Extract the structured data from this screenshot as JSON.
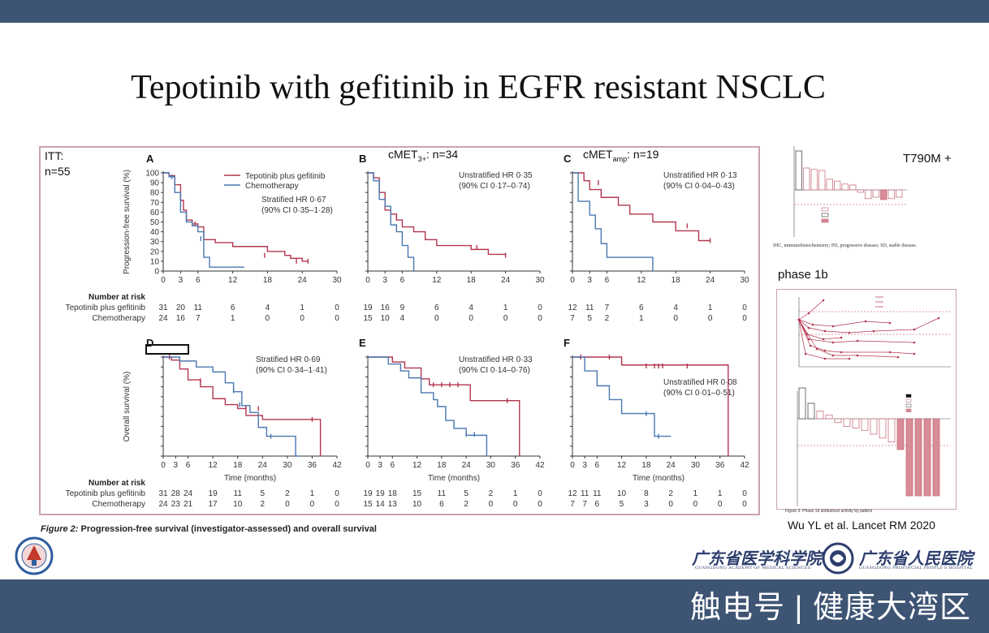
{
  "slide": {
    "title": "Tepotinib with gefitinib in EGFR resistant NSCLC",
    "itt_label": "ITT:",
    "itt_n": "n=55",
    "cmet3_label": "cMET",
    "cmet3_sub": "3+",
    "cmet3_n": ": n=34",
    "cmetamp_label": "cMET",
    "cmetamp_sub": "amp",
    "cmetamp_n": ": n=19",
    "t790m_label": "T790M +",
    "phase_label": "phase 1b",
    "citation": "Wu YL et al. Lancet RM 2020",
    "caption_prefix": "Figure 2:",
    "caption_text": " Progression-free survival (investigator-assessed) and overall survival",
    "watermark": "触电号 | 健康大湾区",
    "org1": "广东省医学科学院",
    "org1_en": "GUANGDONG ACADEMY OF MEDICAL SCIENCES",
    "org2": "广东省人民医院",
    "org2_en": "GUANGDONG PROVINCIAL PEOPLE'S HOSPITAL",
    "waterfall_footnote": "IHC, immunohistochemistry; PD, progressive disease; SD, stable disease.",
    "phase1b_caption": "Figure 3: Phase 1b antitumour activity by patient"
  },
  "colors": {
    "red": "#b3364f",
    "blue": "#4a78b0",
    "bar": "#3e5473"
  },
  "chart_data": [
    {
      "type": "line",
      "panel": "A",
      "ylabel": "Progression-free survival (%)",
      "xlabel": "",
      "xlim": [
        0,
        30
      ],
      "ylim": [
        0,
        100
      ],
      "xticks": [
        0,
        3,
        6,
        12,
        18,
        24,
        30
      ],
      "yticks": [
        0,
        10,
        20,
        30,
        40,
        50,
        60,
        70,
        80,
        90,
        100
      ],
      "legend": [
        "Tepotinib plus gefitinib",
        "Chemotherapy"
      ],
      "annotation": [
        "Stratified HR 0·67",
        "(90% CI 0·35–1·28)"
      ],
      "series": [
        {
          "name": "Tepotinib plus gefitinib",
          "color": "red",
          "x": [
            0,
            1,
            2,
            3,
            3.5,
            4,
            5,
            6,
            7,
            9,
            12,
            18,
            21,
            22,
            24,
            25
          ],
          "y": [
            100,
            97,
            88,
            72,
            62,
            52,
            48,
            45,
            32,
            29,
            25,
            20,
            16,
            13,
            10,
            10
          ],
          "censor": [
            [
              5.5,
              48
            ],
            [
              17.5,
              16
            ],
            [
              23,
              10
            ],
            [
              25,
              10
            ]
          ]
        },
        {
          "name": "Chemotherapy",
          "color": "blue",
          "x": [
            0,
            1,
            2,
            3,
            4,
            5,
            6,
            7,
            8,
            14
          ],
          "y": [
            100,
            96,
            80,
            60,
            50,
            46,
            40,
            14,
            4,
            4
          ],
          "censor": [
            [
              1.5,
              96
            ],
            [
              6.5,
              33
            ]
          ]
        }
      ],
      "risk_title": "Number at risk",
      "risk_rows": [
        {
          "label": "Tepotinib plus gefitinib",
          "values": [
            "31",
            "20",
            "11",
            "6",
            "4",
            "1",
            "0"
          ]
        },
        {
          "label": "Chemotherapy",
          "values": [
            "24",
            "16",
            "7",
            "1",
            "0",
            "0",
            "0"
          ]
        }
      ]
    },
    {
      "type": "line",
      "panel": "B",
      "xlim": [
        0,
        30
      ],
      "ylim": [
        0,
        100
      ],
      "xticks": [
        0,
        3,
        6,
        12,
        18,
        24,
        30
      ],
      "annotation": [
        "Unstratified HR 0·35",
        "(90% CI 0·17–0·74)"
      ],
      "series": [
        {
          "name": "Tepotinib plus gefitinib",
          "color": "red",
          "x": [
            0,
            1,
            2,
            3,
            4,
            5,
            6,
            8,
            10,
            12,
            18,
            21,
            22,
            24
          ],
          "y": [
            100,
            95,
            80,
            62,
            58,
            52,
            45,
            40,
            32,
            26,
            22,
            17,
            17,
            16
          ],
          "censor": [
            [
              5,
              55
            ],
            [
              19,
              24
            ],
            [
              24,
              16
            ]
          ]
        },
        {
          "name": "Chemotherapy",
          "color": "blue",
          "x": [
            0,
            1,
            2,
            3,
            4,
            5,
            6,
            7,
            8
          ],
          "y": [
            100,
            92,
            73,
            66,
            47,
            40,
            26,
            14,
            0
          ],
          "censor": []
        }
      ],
      "risk_rows": [
        {
          "label": "",
          "values": [
            "19",
            "16",
            "9",
            "6",
            "4",
            "1",
            "0"
          ]
        },
        {
          "label": "",
          "values": [
            "15",
            "10",
            "4",
            "0",
            "0",
            "0",
            "0"
          ]
        }
      ]
    },
    {
      "type": "line",
      "panel": "C",
      "xlim": [
        0,
        30
      ],
      "ylim": [
        0,
        100
      ],
      "xticks": [
        0,
        3,
        6,
        12,
        18,
        24,
        30
      ],
      "annotation": [
        "Unstratified HR 0·13",
        "(90% CI 0·04–0·43)"
      ],
      "series": [
        {
          "name": "Tepotinib plus gefitinib",
          "color": "red",
          "x": [
            0,
            2,
            3,
            5,
            8,
            10,
            14,
            18,
            20,
            22,
            24
          ],
          "y": [
            100,
            92,
            83,
            75,
            67,
            58,
            50,
            41,
            41,
            31,
            31
          ],
          "censor": [
            [
              4.5,
              90
            ],
            [
              20,
              46
            ],
            [
              24,
              31
            ]
          ]
        },
        {
          "name": "Chemotherapy",
          "color": "blue",
          "x": [
            0,
            1,
            3,
            4,
            5,
            6,
            7,
            14
          ],
          "y": [
            100,
            71,
            57,
            43,
            28,
            14,
            14,
            0
          ],
          "censor": []
        }
      ],
      "risk_rows": [
        {
          "label": "",
          "values": [
            "12",
            "11",
            "7",
            "6",
            "4",
            "1",
            "0"
          ]
        },
        {
          "label": "",
          "values": [
            "7",
            "5",
            "2",
            "1",
            "0",
            "0",
            "0"
          ]
        }
      ]
    },
    {
      "type": "line",
      "panel": "D",
      "ylabel": "Overall survival (%)",
      "xlabel": "Time (months)",
      "xlim": [
        0,
        42
      ],
      "ylim": [
        0,
        100
      ],
      "xticks": [
        0,
        3,
        6,
        12,
        18,
        24,
        30,
        36,
        42
      ],
      "annotation": [
        "Stratified HR 0·69",
        "(90% CI 0·34–1·41)"
      ],
      "series": [
        {
          "name": "Tepotinib plus gefitinib",
          "color": "red",
          "x": [
            0,
            2,
            4,
            6,
            9,
            12,
            15,
            18,
            20,
            24,
            30,
            38
          ],
          "y": [
            100,
            97,
            88,
            77,
            70,
            58,
            52,
            48,
            41,
            37,
            37,
            0
          ],
          "censor": [
            [
              1.5,
              100
            ],
            [
              9,
              76
            ],
            [
              20,
              48
            ],
            [
              23,
              48
            ],
            [
              36,
              37
            ]
          ]
        },
        {
          "name": "Chemotherapy",
          "color": "blue",
          "x": [
            0,
            4,
            8,
            12,
            15,
            17,
            19,
            21,
            23,
            25,
            28,
            32,
            33
          ],
          "y": [
            100,
            96,
            90,
            85,
            74,
            65,
            51,
            44,
            29,
            20,
            20,
            0,
            0
          ],
          "censor": [
            [
              17,
              66
            ],
            [
              18.5,
              52
            ],
            [
              26,
              20
            ]
          ]
        }
      ],
      "risk_title": "Number at risk",
      "risk_rows": [
        {
          "label": "Tepotinib plus gefitinib",
          "values": [
            "31",
            "28",
            "24",
            "19",
            "11",
            "5",
            "2",
            "1",
            "0"
          ]
        },
        {
          "label": "Chemotherapy",
          "values": [
            "24",
            "23",
            "21",
            "17",
            "10",
            "2",
            "0",
            "0",
            "0"
          ]
        }
      ]
    },
    {
      "type": "line",
      "panel": "E",
      "xlabel": "Time (months)",
      "xlim": [
        0,
        42
      ],
      "ylim": [
        0,
        100
      ],
      "xticks": [
        0,
        3,
        6,
        12,
        18,
        24,
        30,
        36,
        42
      ],
      "annotation": [
        "Unstratified HR 0·33",
        "(90% CI 0·14–0·76)"
      ],
      "series": [
        {
          "name": "Tepotinib plus gefitinib",
          "color": "red",
          "x": [
            0,
            6,
            9,
            13,
            15,
            23,
            25,
            37
          ],
          "y": [
            100,
            95,
            89,
            78,
            72,
            72,
            56,
            0
          ],
          "censor": [
            [
              16,
              72
            ],
            [
              18,
              72
            ],
            [
              20,
              72
            ],
            [
              22,
              72
            ],
            [
              34,
              56
            ]
          ]
        },
        {
          "name": "Chemotherapy",
          "color": "blue",
          "x": [
            0,
            5,
            8,
            10,
            13,
            16,
            17,
            19,
            21,
            24,
            29
          ],
          "y": [
            100,
            93,
            86,
            79,
            64,
            57,
            50,
            36,
            28,
            21,
            0
          ],
          "censor": [
            [
              24,
              22
            ],
            [
              26,
              22
            ]
          ]
        }
      ],
      "risk_rows": [
        {
          "label": "",
          "values": [
            "19",
            "19",
            "18",
            "15",
            "11",
            "5",
            "2",
            "1",
            "0"
          ]
        },
        {
          "label": "",
          "values": [
            "15",
            "14",
            "13",
            "10",
            "6",
            "2",
            "0",
            "0",
            "0"
          ]
        }
      ]
    },
    {
      "type": "line",
      "panel": "F",
      "xlabel": "Time (months)",
      "xlim": [
        0,
        42
      ],
      "ylim": [
        0,
        100
      ],
      "xticks": [
        0,
        3,
        6,
        12,
        18,
        24,
        30,
        36,
        42
      ],
      "annotation": [
        "Unstratified HR 0·08",
        "(90% CI 0·01–0·51)"
      ],
      "series": [
        {
          "name": "Tepotinib plus gefitinib",
          "color": "red",
          "x": [
            0,
            12,
            38
          ],
          "y": [
            100,
            92,
            0
          ],
          "censor": [
            [
              2,
              100
            ],
            [
              9,
              100
            ],
            [
              18,
              91
            ],
            [
              20,
              91
            ],
            [
              21,
              91
            ],
            [
              22,
              91
            ],
            [
              28,
              91
            ]
          ]
        },
        {
          "name": "Chemotherapy",
          "color": "blue",
          "x": [
            0,
            3,
            6,
            9,
            12,
            15,
            18,
            20,
            24
          ],
          "y": [
            100,
            86,
            71,
            57,
            43,
            43,
            43,
            20,
            20
          ],
          "censor": [
            [
              18,
              43
            ],
            [
              21,
              20
            ]
          ]
        }
      ],
      "risk_rows": [
        {
          "label": "",
          "values": [
            "12",
            "11",
            "11",
            "10",
            "8",
            "2",
            "1",
            "1",
            "0"
          ]
        },
        {
          "label": "",
          "values": [
            "7",
            "7",
            "6",
            "5",
            "3",
            "0",
            "0",
            "0",
            "0"
          ]
        }
      ]
    },
    {
      "type": "bar",
      "panel": "T790M+ waterfall",
      "values": [
        80,
        45,
        42,
        40,
        22,
        18,
        12,
        10,
        -5,
        -18,
        -15,
        -20,
        -18,
        -15
      ]
    },
    {
      "type": "bar",
      "panel": "phase 1b waterfall",
      "values": [
        40,
        20,
        10,
        5,
        -5,
        -10,
        -12,
        -15,
        -20,
        -25,
        -30,
        -40,
        -100,
        -100,
        -100,
        -100
      ]
    }
  ]
}
